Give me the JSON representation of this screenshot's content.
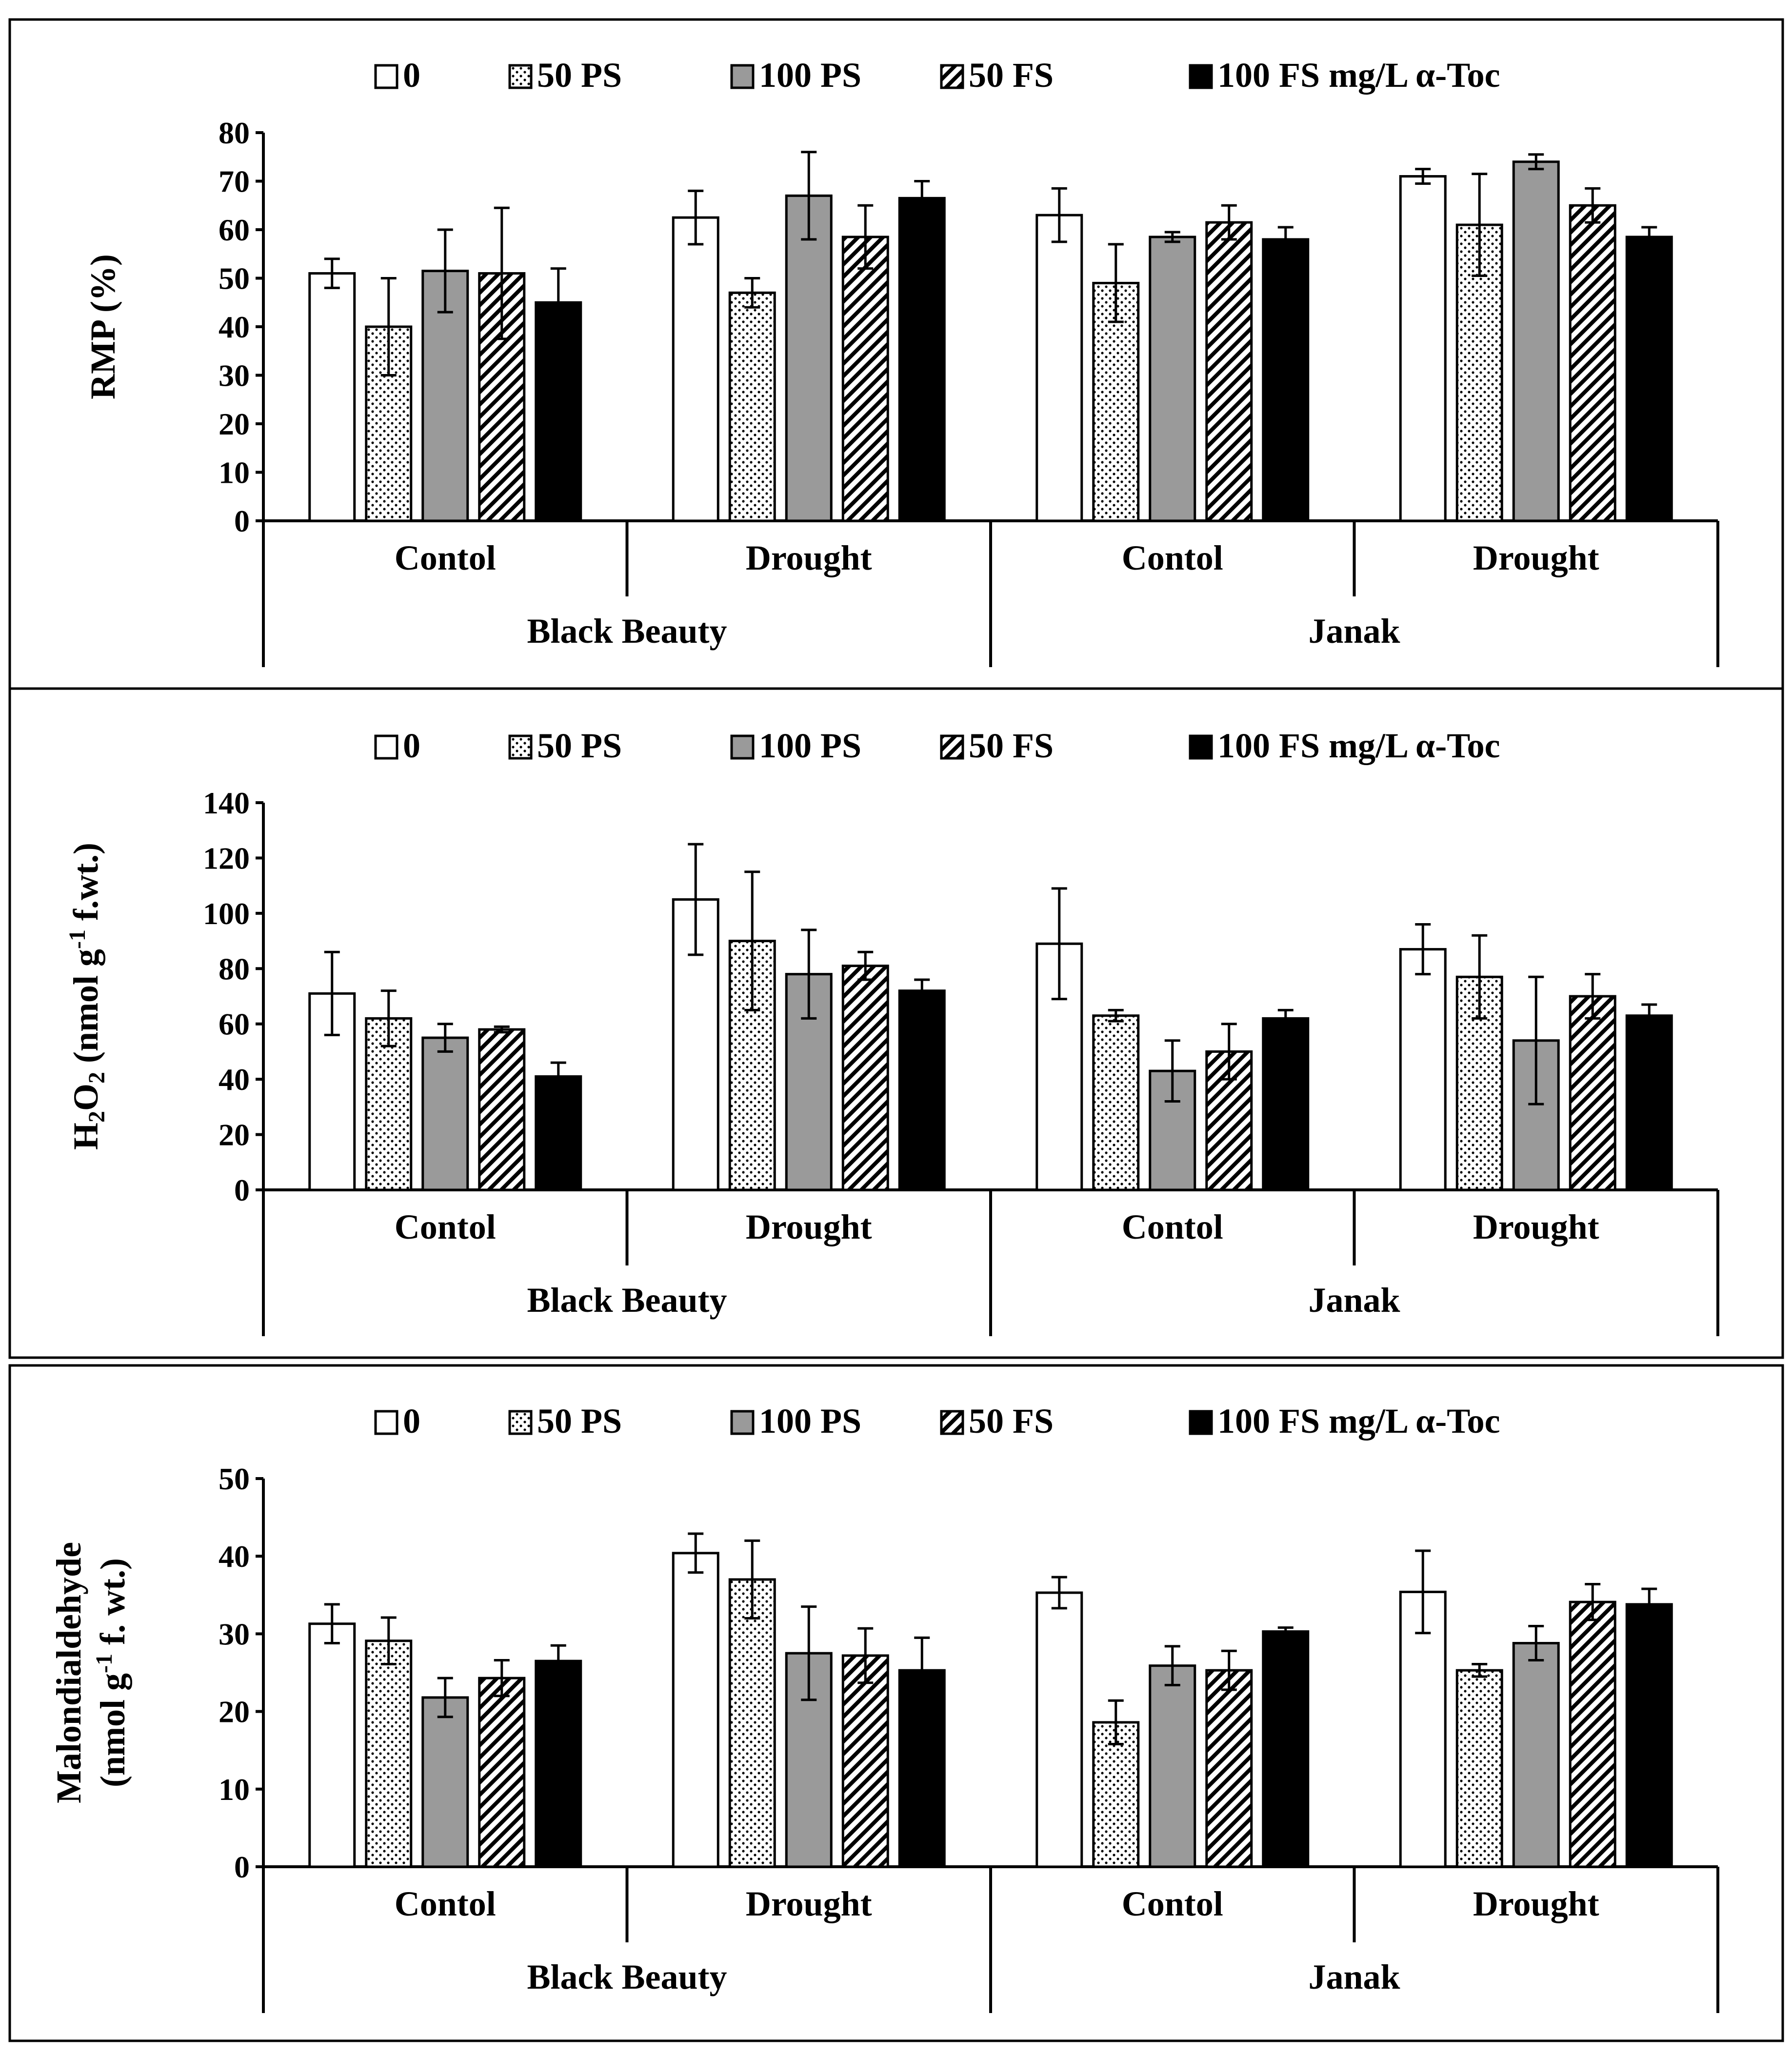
{
  "legend": [
    {
      "label": "0",
      "pattern": "white"
    },
    {
      "label": "50 PS",
      "pattern": "dots"
    },
    {
      "label": "100 PS",
      "pattern": "gray"
    },
    {
      "label": "50 FS",
      "pattern": "hatch"
    },
    {
      "label": "100 FS mg/L α-Toc",
      "pattern": "black"
    }
  ],
  "colors": {
    "gray": "#9a9a9a",
    "black": "#000000",
    "white": "#ffffff"
  },
  "chart_data": [
    {
      "type": "bar",
      "ylabel": "RMP (%)",
      "ylim": [
        0,
        80
      ],
      "yticks": [
        0,
        10,
        20,
        30,
        40,
        50,
        60,
        70,
        80
      ],
      "categories": [
        "Contol",
        "Drought",
        "Contol",
        "Drought"
      ],
      "cultivars": [
        "Black Beauty",
        "Janak"
      ],
      "series": [
        {
          "name": "0",
          "values": [
            51,
            62.5,
            63,
            71
          ],
          "errors": [
            3,
            5.5,
            5.5,
            1.5
          ]
        },
        {
          "name": "50 PS",
          "values": [
            40,
            47,
            49,
            61
          ],
          "errors": [
            10,
            3,
            8,
            10.5
          ]
        },
        {
          "name": "100 PS",
          "values": [
            51.5,
            67,
            58.5,
            74
          ],
          "errors": [
            8.5,
            9,
            1,
            1.5
          ]
        },
        {
          "name": "50 FS",
          "values": [
            51,
            58.5,
            61.5,
            65
          ],
          "errors": [
            13.5,
            6.5,
            3.5,
            3.5
          ]
        },
        {
          "name": "100 FS mg/L α-Toc",
          "values": [
            45,
            66.5,
            58,
            58.5
          ],
          "errors": [
            7,
            3.5,
            2.5,
            2
          ]
        }
      ]
    },
    {
      "type": "bar",
      "ylabel_parts": [
        "H",
        "2",
        "O",
        "2",
        " (nmol g",
        "-1",
        " f.wt.)"
      ],
      "ylim": [
        0,
        140
      ],
      "yticks": [
        0,
        20,
        40,
        60,
        80,
        100,
        120,
        140
      ],
      "categories": [
        "Contol",
        "Drought",
        "Contol",
        "Drought"
      ],
      "cultivars": [
        "Black Beauty",
        "Janak"
      ],
      "series": [
        {
          "name": "0",
          "values": [
            71,
            105,
            89,
            87
          ],
          "errors": [
            15,
            20,
            20,
            9
          ]
        },
        {
          "name": "50 PS",
          "values": [
            62,
            90,
            63,
            77
          ],
          "errors": [
            10,
            25,
            2,
            15
          ]
        },
        {
          "name": "100 PS",
          "values": [
            55,
            78,
            43,
            54
          ],
          "errors": [
            5,
            16,
            11,
            23
          ]
        },
        {
          "name": "50 FS",
          "values": [
            58,
            81,
            50,
            70
          ],
          "errors": [
            1,
            5,
            10,
            8
          ]
        },
        {
          "name": "100 FS mg/L α-Toc",
          "values": [
            41,
            72,
            62,
            63
          ],
          "errors": [
            5,
            4,
            3,
            4
          ]
        }
      ]
    },
    {
      "type": "bar",
      "ylabel_lines": [
        "Malondialdehyde"
      ],
      "ylabel_parts": [
        "(nmol g",
        "-1",
        " f. wt.)"
      ],
      "ylim": [
        0,
        50
      ],
      "yticks": [
        0,
        10,
        20,
        30,
        40,
        50
      ],
      "categories": [
        "Contol",
        "Drought",
        "Contol",
        "Drought"
      ],
      "cultivars": [
        "Black Beauty",
        "Janak"
      ],
      "series": [
        {
          "name": "0",
          "values": [
            31.3,
            40.4,
            35.3,
            35.4
          ],
          "errors": [
            2.5,
            2.5,
            2,
            5.3
          ]
        },
        {
          "name": "50 PS",
          "values": [
            29.1,
            37,
            18.6,
            25.3
          ],
          "errors": [
            3,
            5,
            2.8,
            0.8
          ]
        },
        {
          "name": "100 PS",
          "values": [
            21.8,
            27.5,
            25.9,
            28.8
          ],
          "errors": [
            2.5,
            6,
            2.5,
            2.2
          ]
        },
        {
          "name": "50 FS",
          "values": [
            24.3,
            27.2,
            25.3,
            34.1
          ],
          "errors": [
            2.3,
            3.5,
            2.5,
            2.3
          ]
        },
        {
          "name": "100 FS mg/L α-Toc",
          "values": [
            26.5,
            25.3,
            30.3,
            33.8
          ],
          "errors": [
            2,
            4.2,
            0.5,
            2
          ]
        }
      ]
    }
  ]
}
